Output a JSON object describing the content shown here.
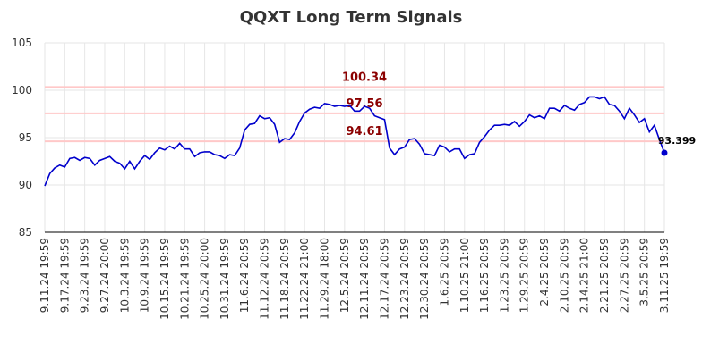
{
  "chart_data": {
    "type": "line",
    "title": "QQXT Long Term Signals",
    "categories": [
      "9.11.24 19:59",
      null,
      null,
      null,
      "9.17.24 19:59",
      null,
      null,
      null,
      "9.23.24 19:59",
      null,
      null,
      null,
      "9.27.24 20:00",
      null,
      null,
      null,
      "10.3.24 19:59",
      null,
      null,
      null,
      "10.9.24 19:59",
      null,
      null,
      null,
      "10.15.24 19:59",
      null,
      null,
      null,
      "10.21.24 19:59",
      null,
      null,
      null,
      "10.25.24 20:00",
      null,
      null,
      null,
      "10.31.24 19:59",
      null,
      null,
      null,
      "11.6.24 20:59",
      null,
      null,
      null,
      "11.12.24 20:59",
      null,
      null,
      null,
      "11.18.24 20:59",
      null,
      null,
      null,
      "11.22.24 21:00",
      null,
      null,
      null,
      "11.29.24 18:00",
      null,
      null,
      null,
      "12.5.24 20:59",
      null,
      null,
      null,
      "12.11.24 20:59",
      null,
      null,
      null,
      "12.17.24 20:59",
      null,
      null,
      null,
      "12.23.24 20:59",
      null,
      null,
      null,
      "12.30.24 20:59",
      null,
      null,
      null,
      "1.6.25 20:59",
      null,
      null,
      null,
      "1.10.25 21:00",
      null,
      null,
      null,
      "1.16.25 20:59",
      null,
      null,
      null,
      "1.23.25 20:59",
      null,
      null,
      null,
      "1.29.25 20:59",
      null,
      null,
      null,
      "2.4.25 20:59",
      null,
      null,
      null,
      "2.10.25 20:59",
      null,
      null,
      null,
      "2.14.25 21:00",
      null,
      null,
      null,
      "2.21.25 20:59",
      null,
      null,
      null,
      "2.27.25 20:59",
      null,
      null,
      null,
      "3.5.25 20:59",
      null,
      null,
      null,
      "3.11.25 19:59"
    ],
    "series": [
      {
        "color": "#0000cc",
        "values": [
          89.9,
          91.2,
          91.8,
          92.1,
          91.9,
          92.8,
          92.9,
          92.6,
          92.9,
          92.8,
          92.1,
          92.6,
          92.8,
          93.0,
          92.5,
          92.3,
          91.7,
          92.5,
          91.7,
          92.5,
          93.1,
          92.7,
          93.4,
          93.9,
          93.7,
          94.1,
          93.8,
          94.4,
          93.8,
          93.8,
          93.0,
          93.4,
          93.5,
          93.5,
          93.2,
          93.1,
          92.8,
          93.2,
          93.1,
          93.9,
          95.8,
          96.4,
          96.5,
          97.3,
          97.0,
          97.1,
          96.4,
          94.5,
          94.9,
          94.8,
          95.5,
          96.7,
          97.6,
          98.0,
          98.2,
          98.1,
          98.6,
          98.5,
          98.3,
          98.4,
          98.3,
          98.4,
          97.8,
          97.8,
          98.3,
          98.1,
          97.3,
          97.1,
          96.9,
          93.9,
          93.2,
          93.8,
          94.0,
          94.8,
          94.9,
          94.3,
          93.3,
          93.2,
          93.1,
          94.2,
          94.0,
          93.5,
          93.8,
          93.8,
          92.8,
          93.2,
          93.3,
          94.5,
          95.1,
          95.8,
          96.3,
          96.3,
          96.4,
          96.3,
          96.7,
          96.2,
          96.7,
          97.4,
          97.1,
          97.3,
          97.0,
          98.1,
          98.1,
          97.8,
          98.4,
          98.1,
          97.9,
          98.5,
          98.7,
          99.3,
          99.3,
          99.1,
          99.3,
          98.5,
          98.4,
          97.8,
          97.0,
          98.1,
          97.4,
          96.6,
          97.0,
          95.6,
          96.3,
          94.8,
          93.399
        ]
      }
    ],
    "ylim": [
      85,
      105
    ],
    "yticks": [
      85,
      90,
      95,
      100,
      105
    ],
    "grid": true,
    "hlines": [
      100.34,
      97.56,
      94.61
    ],
    "hline_color": "#ffc8c8",
    "hline_label_color": "#8b0000"
  }
}
